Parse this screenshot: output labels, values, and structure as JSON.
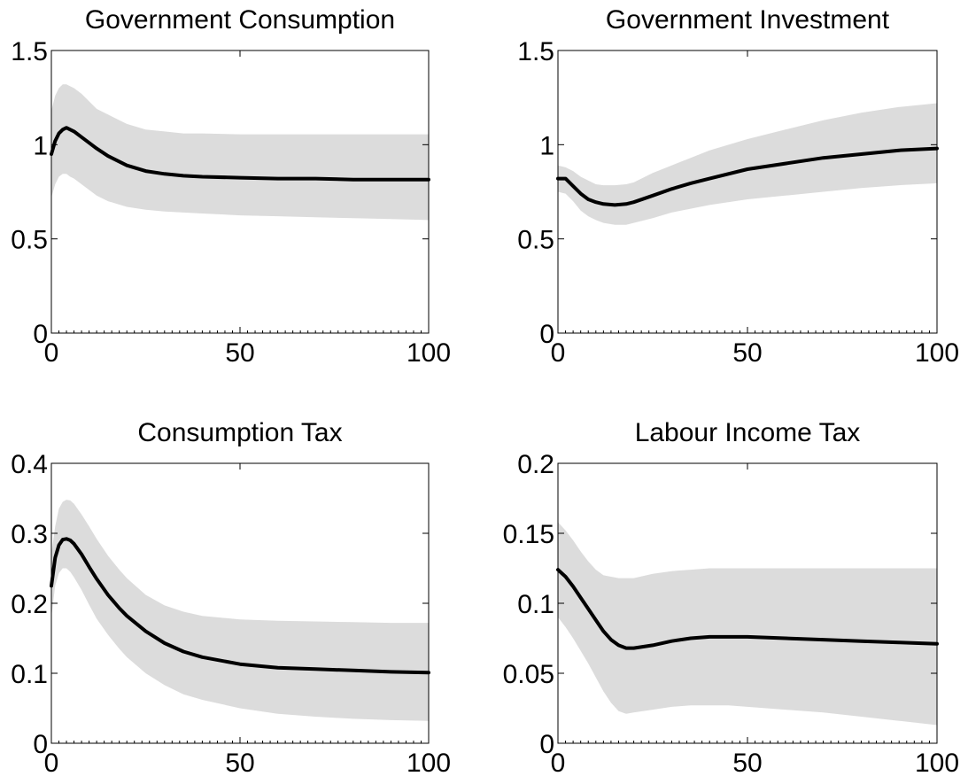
{
  "chart_data": [
    {
      "type": "line",
      "title": "Government Consumption",
      "xlabel": "",
      "ylabel": "",
      "xlim": [
        0,
        100
      ],
      "ylim": [
        0,
        1.5
      ],
      "x_ticks": [
        0,
        50,
        100
      ],
      "x_tick_labels": [
        "0",
        "50",
        "100"
      ],
      "y_ticks": [
        0,
        0.5,
        1,
        1.5
      ],
      "y_tick_labels": [
        "0",
        "0.5",
        "1",
        "1.5"
      ],
      "grid": false,
      "legend": "none",
      "line_color": "#000000",
      "band_color": "#dcdcdc",
      "x": [
        0,
        1,
        2,
        3,
        4,
        5,
        6,
        8,
        10,
        12,
        15,
        20,
        25,
        30,
        35,
        40,
        50,
        60,
        70,
        80,
        90,
        100
      ],
      "median": [
        0.95,
        1.02,
        1.06,
        1.08,
        1.09,
        1.08,
        1.07,
        1.04,
        1.01,
        0.98,
        0.94,
        0.89,
        0.86,
        0.845,
        0.835,
        0.83,
        0.825,
        0.82,
        0.82,
        0.815,
        0.815,
        0.815
      ],
      "lower": [
        0.72,
        0.79,
        0.83,
        0.845,
        0.845,
        0.83,
        0.82,
        0.79,
        0.76,
        0.73,
        0.7,
        0.67,
        0.655,
        0.645,
        0.64,
        0.635,
        0.625,
        0.62,
        0.615,
        0.61,
        0.605,
        0.6
      ],
      "upper": [
        1.18,
        1.26,
        1.3,
        1.32,
        1.32,
        1.31,
        1.3,
        1.27,
        1.23,
        1.19,
        1.16,
        1.11,
        1.08,
        1.07,
        1.06,
        1.06,
        1.055,
        1.055,
        1.055,
        1.055,
        1.055,
        1.055
      ]
    },
    {
      "type": "line",
      "title": "Government Investment",
      "xlabel": "",
      "ylabel": "",
      "xlim": [
        0,
        100
      ],
      "ylim": [
        0,
        1.5
      ],
      "x_ticks": [
        0,
        50,
        100
      ],
      "x_tick_labels": [
        "0",
        "50",
        "100"
      ],
      "y_ticks": [
        0,
        0.5,
        1,
        1.5
      ],
      "y_tick_labels": [
        "0",
        "0.5",
        "1",
        "1.5"
      ],
      "grid": false,
      "legend": "none",
      "line_color": "#000000",
      "band_color": "#dcdcdc",
      "x": [
        0,
        2,
        4,
        6,
        8,
        10,
        12,
        15,
        18,
        20,
        25,
        30,
        35,
        40,
        50,
        60,
        70,
        80,
        90,
        100
      ],
      "median": [
        0.82,
        0.82,
        0.78,
        0.74,
        0.71,
        0.695,
        0.685,
        0.68,
        0.685,
        0.695,
        0.73,
        0.765,
        0.795,
        0.82,
        0.87,
        0.9,
        0.93,
        0.95,
        0.97,
        0.98
      ],
      "lower": [
        0.75,
        0.74,
        0.7,
        0.65,
        0.62,
        0.6,
        0.585,
        0.575,
        0.575,
        0.585,
        0.61,
        0.64,
        0.66,
        0.68,
        0.71,
        0.73,
        0.75,
        0.77,
        0.785,
        0.795
      ],
      "upper": [
        0.89,
        0.88,
        0.86,
        0.83,
        0.81,
        0.79,
        0.785,
        0.785,
        0.79,
        0.8,
        0.85,
        0.89,
        0.93,
        0.97,
        1.03,
        1.08,
        1.13,
        1.17,
        1.2,
        1.22
      ]
    },
    {
      "type": "line",
      "title": "Consumption Tax",
      "xlabel": "",
      "ylabel": "",
      "xlim": [
        0,
        100
      ],
      "ylim": [
        0,
        0.4
      ],
      "x_ticks": [
        0,
        50,
        100
      ],
      "x_tick_labels": [
        "0",
        "50",
        "100"
      ],
      "y_ticks": [
        0,
        0.1,
        0.2,
        0.3,
        0.4
      ],
      "y_tick_labels": [
        "0",
        "0.1",
        "0.2",
        "0.3",
        "0.4"
      ],
      "grid": false,
      "legend": "none",
      "line_color": "#000000",
      "band_color": "#dcdcdc",
      "x": [
        0,
        1,
        2,
        3,
        4,
        5,
        6,
        8,
        10,
        12,
        15,
        18,
        20,
        25,
        30,
        35,
        40,
        50,
        60,
        70,
        80,
        90,
        100
      ],
      "median": [
        0.225,
        0.265,
        0.283,
        0.291,
        0.292,
        0.29,
        0.285,
        0.27,
        0.252,
        0.235,
        0.212,
        0.193,
        0.182,
        0.16,
        0.143,
        0.131,
        0.123,
        0.113,
        0.108,
        0.106,
        0.104,
        0.102,
        0.101
      ],
      "lower": [
        0.18,
        0.225,
        0.243,
        0.25,
        0.25,
        0.245,
        0.237,
        0.219,
        0.198,
        0.178,
        0.155,
        0.135,
        0.123,
        0.1,
        0.083,
        0.07,
        0.062,
        0.05,
        0.042,
        0.038,
        0.035,
        0.033,
        0.032
      ],
      "upper": [
        0.27,
        0.31,
        0.335,
        0.345,
        0.348,
        0.347,
        0.342,
        0.327,
        0.31,
        0.292,
        0.268,
        0.248,
        0.236,
        0.212,
        0.197,
        0.188,
        0.182,
        0.177,
        0.175,
        0.174,
        0.173,
        0.172,
        0.172
      ]
    },
    {
      "type": "line",
      "title": "Labour Income Tax",
      "xlabel": "",
      "ylabel": "",
      "xlim": [
        0,
        100
      ],
      "ylim": [
        0,
        0.2
      ],
      "x_ticks": [
        0,
        50,
        100
      ],
      "x_tick_labels": [
        "0",
        "50",
        "100"
      ],
      "y_ticks": [
        0,
        0.05,
        0.1,
        0.15,
        0.2
      ],
      "y_tick_labels": [
        "0",
        "0.05",
        "0.1",
        "0.15",
        "0.2"
      ],
      "grid": false,
      "legend": "none",
      "line_color": "#000000",
      "band_color": "#dcdcdc",
      "x": [
        0,
        2,
        4,
        6,
        8,
        10,
        12,
        14,
        16,
        18,
        20,
        25,
        30,
        35,
        40,
        45,
        50,
        60,
        70,
        80,
        90,
        100
      ],
      "median": [
        0.124,
        0.119,
        0.112,
        0.104,
        0.096,
        0.088,
        0.08,
        0.074,
        0.07,
        0.068,
        0.068,
        0.07,
        0.073,
        0.075,
        0.076,
        0.076,
        0.076,
        0.075,
        0.074,
        0.073,
        0.072,
        0.071
      ],
      "lower": [
        0.09,
        0.083,
        0.075,
        0.066,
        0.057,
        0.047,
        0.037,
        0.029,
        0.023,
        0.021,
        0.022,
        0.024,
        0.026,
        0.027,
        0.027,
        0.027,
        0.026,
        0.024,
        0.022,
        0.019,
        0.016,
        0.013
      ],
      "upper": [
        0.158,
        0.152,
        0.145,
        0.137,
        0.13,
        0.124,
        0.12,
        0.119,
        0.118,
        0.118,
        0.118,
        0.121,
        0.123,
        0.124,
        0.125,
        0.125,
        0.125,
        0.125,
        0.125,
        0.125,
        0.125,
        0.125
      ]
    }
  ]
}
